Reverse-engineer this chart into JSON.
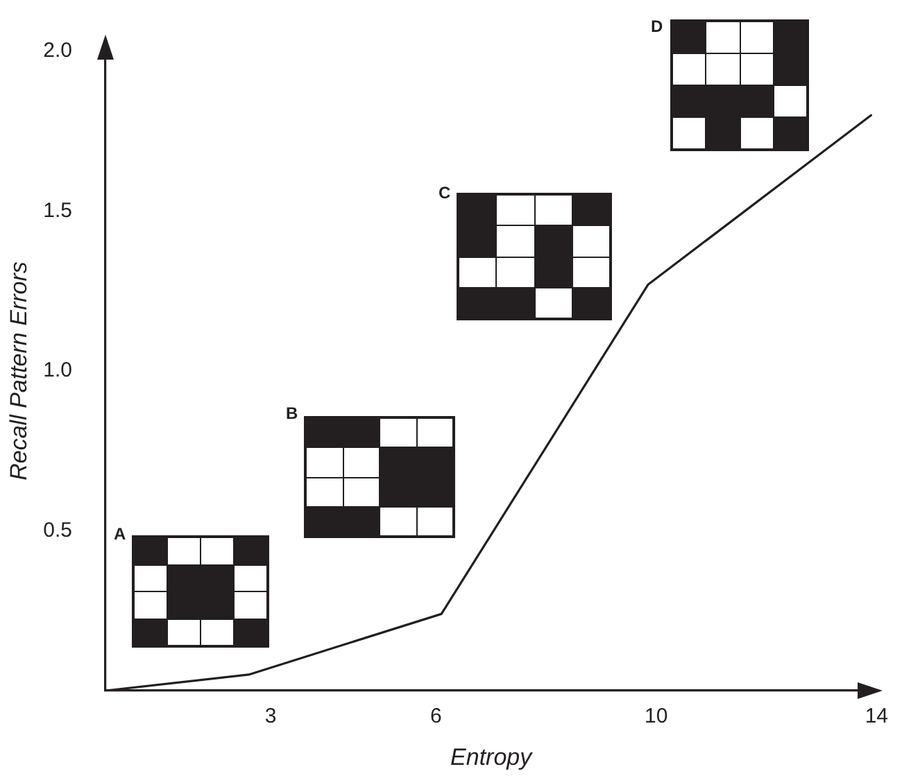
{
  "chart_data": {
    "type": "line",
    "xlabel": "Entropy",
    "ylabel": "Recall Pattern Errors",
    "x": [
      0,
      2.6,
      6.1,
      9.85,
      13.9
    ],
    "series": [
      {
        "color": "#231f20",
        "values": [
          0,
          0.05,
          0.24,
          1.27,
          1.8
        ]
      }
    ],
    "xlim": [
      0,
      14
    ],
    "xticks": [
      3,
      6,
      10,
      14
    ],
    "ylim": [
      0,
      2
    ],
    "yticks": [
      {
        "value": 0.5,
        "label": "0.5"
      },
      {
        "value": 1,
        "label": "1.0"
      },
      {
        "value": 1.5,
        "label": "1.5"
      },
      {
        "value": 2,
        "label": "2.0"
      }
    ],
    "grid": false,
    "legend": false,
    "marker": "none",
    "line_style": "solid",
    "annotations": [
      "A",
      "B",
      "C",
      "D"
    ]
  }
}
